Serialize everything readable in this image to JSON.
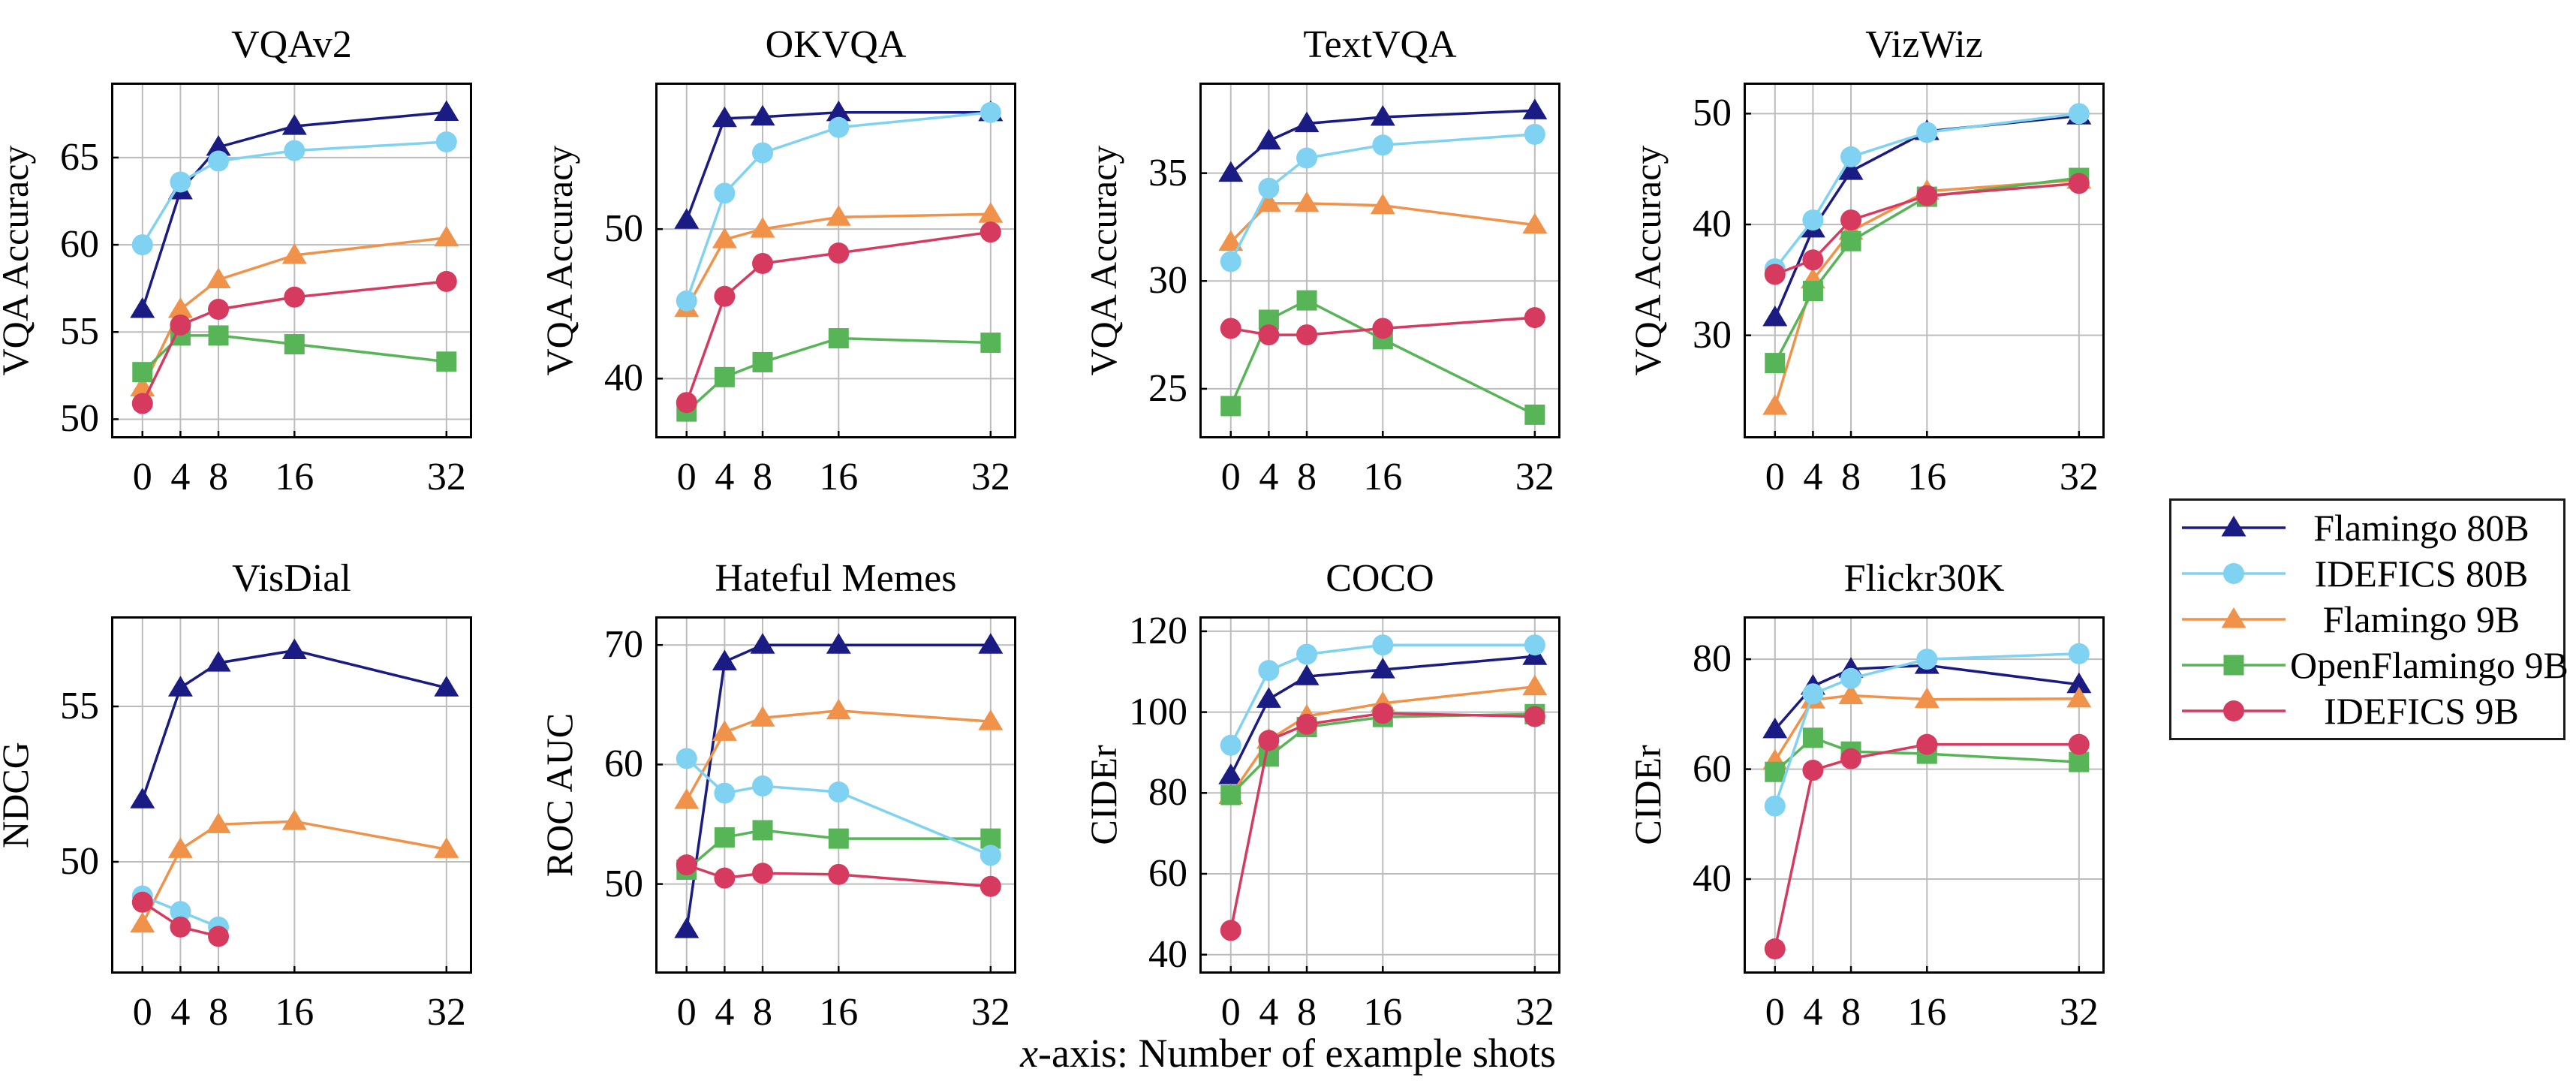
{
  "caption": {
    "x_part": "x",
    "rest_part": "-axis: Number of example shots"
  },
  "legend": {
    "entries": [
      {
        "label": "Flamingo 80B",
        "color": "#1b1b84",
        "marker": "triangle"
      },
      {
        "label": "IDEFICS 80B",
        "color": "#7fd2f1",
        "marker": "circle"
      },
      {
        "label": "Flamingo 9B",
        "color": "#f0924a",
        "marker": "triangle"
      },
      {
        "label": "OpenFlamingo 9B",
        "color": "#57b457",
        "marker": "square"
      },
      {
        "label": "IDEFICS 9B",
        "color": "#d63a5f",
        "marker": "circle"
      }
    ]
  },
  "chart_data": [
    {
      "type": "line",
      "title": "VQAv2",
      "ylabel": "VQA Accuracy",
      "xlabel": "",
      "x": [
        0,
        4,
        8,
        16,
        32
      ],
      "xticks": [
        0,
        4,
        8,
        16,
        32
      ],
      "yticks": [
        50,
        55,
        60,
        65
      ],
      "ylim": [
        48.9,
        69.3
      ],
      "xlim": [
        -3.3,
        34.7
      ],
      "grid": true,
      "series": [
        {
          "name": "Flamingo 80B",
          "values": [
            56.3,
            63.1,
            65.6,
            66.8,
            67.6
          ]
        },
        {
          "name": "IDEFICS 80B",
          "values": [
            60.0,
            63.6,
            64.8,
            65.4,
            65.9
          ]
        },
        {
          "name": "Flamingo 9B",
          "values": [
            51.8,
            56.3,
            58.0,
            59.4,
            60.4
          ]
        },
        {
          "name": "OpenFlamingo 9B",
          "values": [
            52.7,
            54.8,
            54.8,
            54.3,
            53.3
          ]
        },
        {
          "name": "IDEFICS 9B",
          "values": [
            50.9,
            55.4,
            56.3,
            57.0,
            57.9
          ]
        }
      ]
    },
    {
      "type": "line",
      "title": "OKVQA",
      "ylabel": "VQA Accuracy",
      "xlabel": "",
      "x": [
        0,
        4,
        8,
        16,
        32
      ],
      "xticks": [
        0,
        4,
        8,
        16,
        32
      ],
      "yticks": [
        40,
        50
      ],
      "ylim": [
        36.0,
        59.8
      ],
      "xlim": [
        -3.3,
        34.7
      ],
      "grid": true,
      "series": [
        {
          "name": "Flamingo 80B",
          "values": [
            50.6,
            57.4,
            57.5,
            57.8,
            57.8
          ]
        },
        {
          "name": "IDEFICS 80B",
          "values": [
            45.2,
            52.4,
            55.1,
            56.8,
            57.8
          ]
        },
        {
          "name": "Flamingo 9B",
          "values": [
            44.7,
            49.3,
            50.0,
            50.8,
            51.0
          ]
        },
        {
          "name": "OpenFlamingo 9B",
          "values": [
            37.8,
            40.1,
            41.1,
            42.7,
            42.4
          ]
        },
        {
          "name": "IDEFICS 9B",
          "values": [
            38.4,
            45.5,
            47.7,
            48.4,
            49.8
          ]
        }
      ]
    },
    {
      "type": "line",
      "title": "TextVQA",
      "ylabel": "VQA Accuracy",
      "xlabel": "",
      "x": [
        0,
        4,
        8,
        16,
        32
      ],
      "xticks": [
        0,
        4,
        8,
        16,
        32
      ],
      "yticks": [
        25,
        30,
        35
      ],
      "ylim": [
        22.7,
        39.2
      ],
      "xlim": [
        -3.3,
        34.7
      ],
      "grid": true,
      "series": [
        {
          "name": "Flamingo 80B",
          "values": [
            35.0,
            36.5,
            37.3,
            37.6,
            37.9
          ]
        },
        {
          "name": "IDEFICS 80B",
          "values": [
            30.9,
            34.3,
            35.7,
            36.3,
            36.8
          ]
        },
        {
          "name": "Flamingo 9B",
          "values": [
            31.8,
            33.6,
            33.6,
            33.5,
            32.6
          ]
        },
        {
          "name": "OpenFlamingo 9B",
          "values": [
            24.2,
            28.2,
            29.1,
            27.3,
            23.8
          ]
        },
        {
          "name": "IDEFICS 9B",
          "values": [
            27.8,
            27.5,
            27.5,
            27.8,
            28.3
          ]
        }
      ]
    },
    {
      "type": "line",
      "title": "VizWiz",
      "ylabel": "VQA Accuracy",
      "xlabel": "",
      "x": [
        0,
        4,
        8,
        16,
        32
      ],
      "xticks": [
        0,
        4,
        8,
        16,
        32
      ],
      "yticks": [
        30,
        40,
        50
      ],
      "ylim": [
        20.7,
        52.8
      ],
      "xlim": [
        -3.3,
        34.7
      ],
      "grid": true,
      "series": [
        {
          "name": "Flamingo 80B",
          "values": [
            31.6,
            39.6,
            44.8,
            48.4,
            49.8
          ]
        },
        {
          "name": "IDEFICS 80B",
          "values": [
            36.0,
            40.4,
            46.1,
            48.3,
            50.0
          ]
        },
        {
          "name": "Flamingo 9B",
          "values": [
            23.6,
            35.0,
            39.4,
            43.0,
            44.0
          ]
        },
        {
          "name": "OpenFlamingo 9B",
          "values": [
            27.5,
            34.0,
            38.5,
            42.5,
            44.2
          ]
        },
        {
          "name": "IDEFICS 9B",
          "values": [
            35.5,
            36.8,
            40.4,
            42.6,
            43.7
          ]
        }
      ]
    },
    {
      "type": "line",
      "title": "VisDial",
      "ylabel": "NDCG",
      "xlabel": "",
      "x": [
        0,
        4,
        8,
        16,
        32
      ],
      "xticks": [
        0,
        4,
        8,
        16,
        32
      ],
      "yticks": [
        50,
        55
      ],
      "ylim": [
        46.4,
        57.9
      ],
      "xlim": [
        -3.3,
        34.7
      ],
      "grid": true,
      "series": [
        {
          "name": "Flamingo 80B",
          "values": [
            52.0,
            55.6,
            56.4,
            56.8,
            55.6
          ]
        },
        {
          "name": "IDEFICS 80B",
          "x": [
            0,
            4,
            8
          ],
          "values": [
            48.9,
            48.4,
            47.9
          ]
        },
        {
          "name": "Flamingo 9B",
          "values": [
            48.0,
            50.4,
            51.2,
            51.3,
            50.4
          ]
        },
        {
          "name": "IDEFICS 9B",
          "x": [
            0,
            4,
            8
          ],
          "values": [
            48.7,
            47.9,
            47.6
          ]
        }
      ]
    },
    {
      "type": "line",
      "title": "Hateful Memes",
      "ylabel": "ROC AUC",
      "xlabel": "",
      "x": [
        0,
        4,
        8,
        16,
        32
      ],
      "xticks": [
        0,
        4,
        8,
        16,
        32
      ],
      "yticks": [
        50,
        60,
        70
      ],
      "ylim": [
        42.5,
        72.4
      ],
      "xlim": [
        -3.3,
        34.7
      ],
      "grid": true,
      "series": [
        {
          "name": "Flamingo 80B",
          "values": [
            46.2,
            68.6,
            70.0,
            70.0,
            70.0
          ]
        },
        {
          "name": "IDEFICS 80B",
          "values": [
            60.5,
            57.6,
            58.2,
            57.7,
            52.4
          ]
        },
        {
          "name": "Flamingo 9B",
          "values": [
            57.0,
            62.7,
            63.9,
            64.5,
            63.6
          ]
        },
        {
          "name": "OpenFlamingo 9B",
          "values": [
            51.2,
            53.9,
            54.5,
            53.8,
            53.8
          ]
        },
        {
          "name": "IDEFICS 9B",
          "values": [
            51.6,
            50.5,
            50.9,
            50.8,
            49.8
          ]
        }
      ]
    },
    {
      "type": "line",
      "title": "COCO",
      "ylabel": "CIDEr",
      "xlabel": "",
      "x": [
        0,
        4,
        8,
        16,
        32
      ],
      "xticks": [
        0,
        4,
        8,
        16,
        32
      ],
      "yticks": [
        40,
        60,
        80,
        100,
        120
      ],
      "ylim": [
        35.3,
        123.7
      ],
      "xlim": [
        -3.3,
        34.7
      ],
      "grid": true,
      "series": [
        {
          "name": "Flamingo 80B",
          "values": [
            84.3,
            103.2,
            108.8,
            110.5,
            113.8
          ]
        },
        {
          "name": "IDEFICS 80B",
          "values": [
            91.8,
            110.3,
            114.3,
            116.6,
            116.6
          ]
        },
        {
          "name": "Flamingo 9B",
          "values": [
            79.4,
            93.1,
            99.0,
            102.2,
            106.3
          ]
        },
        {
          "name": "OpenFlamingo 9B",
          "values": [
            79.5,
            89.0,
            96.3,
            98.8,
            99.5
          ]
        },
        {
          "name": "IDEFICS 9B",
          "values": [
            46.0,
            93.0,
            97.0,
            99.7,
            98.9
          ]
        }
      ]
    },
    {
      "type": "line",
      "title": "Flickr30K",
      "ylabel": "CIDEr",
      "xlabel": "",
      "x": [
        0,
        4,
        8,
        16,
        32
      ],
      "xticks": [
        0,
        4,
        8,
        16,
        32
      ],
      "yticks": [
        40,
        60,
        80
      ],
      "ylim": [
        22.8,
        87.8
      ],
      "xlim": [
        -3.3,
        34.7
      ],
      "grid": true,
      "series": [
        {
          "name": "Flamingo 80B",
          "values": [
            67.2,
            75.1,
            78.2,
            78.9,
            75.4
          ]
        },
        {
          "name": "IDEFICS 80B",
          "values": [
            53.3,
            73.7,
            76.5,
            80.0,
            81.0
          ]
        },
        {
          "name": "Flamingo 9B",
          "values": [
            61.5,
            72.6,
            73.4,
            72.7,
            72.8
          ]
        },
        {
          "name": "OpenFlamingo 9B",
          "values": [
            59.5,
            65.7,
            63.2,
            62.8,
            61.3
          ]
        },
        {
          "name": "IDEFICS 9B",
          "values": [
            27.3,
            59.8,
            61.9,
            64.5,
            64.5
          ]
        }
      ]
    }
  ]
}
